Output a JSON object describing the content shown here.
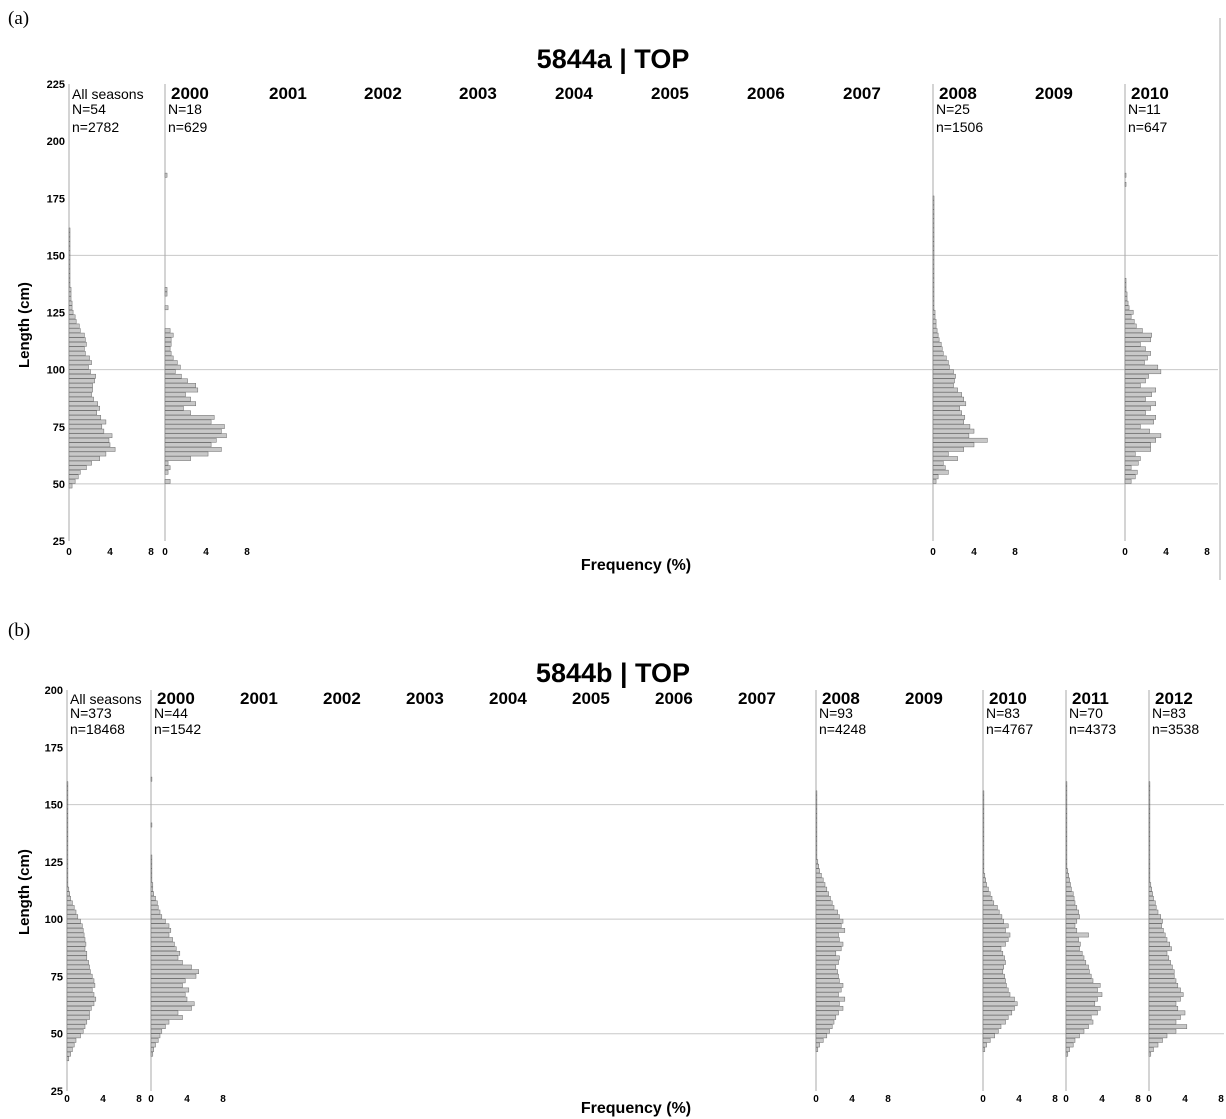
{
  "panels": [
    {
      "label": "(a)",
      "title": "5844a | TOP",
      "xlabel": "Frequency (%)",
      "ylabel": "Length (cm)"
    },
    {
      "label": "(b)",
      "title": "5844b | TOP",
      "xlabel": "Frequency (%)",
      "ylabel": "Length (cm)"
    }
  ],
  "colors": {
    "bar_fill": "#c8c8c8",
    "bar_stroke": "#6a6a6a",
    "grid": "#c8c8c8",
    "axis": "#aaaaaa"
  },
  "chart_data": [
    {
      "type": "bar",
      "orientation": "horizontal",
      "title": "5844a | TOP",
      "xlabel": "Frequency (%)",
      "ylabel": "Length (cm)",
      "ylim": [
        25,
        225
      ],
      "yticks": [
        25,
        50,
        75,
        100,
        125,
        150,
        175,
        200,
        225
      ],
      "xlim": [
        0,
        8
      ],
      "xticks": [
        0,
        4,
        8
      ],
      "bin_width_cm": 2,
      "grid_lines": [
        50,
        100,
        150
      ],
      "series": [
        {
          "name": "All seasons",
          "N": "N=54",
          "n": "n=2782",
          "has_axis": true,
          "start": 48,
          "values": [
            0.3,
            0.6,
            0.9,
            1.1,
            1.7,
            2.2,
            3.0,
            3.6,
            4.5,
            4.0,
            3.9,
            4.2,
            3.4,
            3.2,
            3.6,
            3.1,
            2.7,
            3.0,
            2.8,
            2.4,
            2.2,
            2.3,
            2.3,
            2.5,
            2.6,
            2.1,
            1.9,
            2.2,
            2.0,
            1.6,
            1.5,
            1.7,
            1.6,
            1.5,
            1.1,
            1.0,
            0.7,
            0.6,
            0.4,
            0.3,
            0.3,
            0.2,
            0.2,
            0.2,
            0.1,
            0.1,
            0.1,
            0.1,
            0.1,
            0.1,
            0.1,
            0.1,
            0.1,
            0.1,
            0.1,
            0.1,
            0.1
          ]
        },
        {
          "name": "2000",
          "N": "N=18",
          "n": "n=629",
          "has_axis": true,
          "start": 50,
          "values": [
            0.5,
            0,
            0.3,
            0.5,
            0.3,
            2.5,
            4.2,
            5.5,
            4.5,
            5.0,
            6.0,
            5.5,
            5.8,
            4.5,
            4.8,
            2.5,
            1.8,
            3.0,
            2.5,
            2.0,
            3.2,
            3.0,
            2.2,
            1.6,
            1.0,
            1.5,
            1.2,
            0.8,
            0.6,
            0.5,
            0.6,
            0.6,
            0.8,
            0.5,
            0.0,
            0,
            0,
            0,
            0.3,
            0,
            0,
            0.2,
            0.2,
            0,
            0,
            0,
            0,
            0,
            0,
            0,
            0,
            0,
            0,
            0,
            0,
            0,
            0,
            0,
            0,
            0,
            0,
            0,
            0,
            0,
            0,
            0,
            0,
            0.2
          ]
        },
        {
          "name": "2001",
          "has_axis": false
        },
        {
          "name": "2002",
          "has_axis": false
        },
        {
          "name": "2003",
          "has_axis": false
        },
        {
          "name": "2004",
          "has_axis": false
        },
        {
          "name": "2005",
          "has_axis": false
        },
        {
          "name": "2006",
          "has_axis": false
        },
        {
          "name": "2007",
          "has_axis": false
        },
        {
          "name": "2008",
          "N": "N=25",
          "n": "n=1506",
          "has_axis": true,
          "start": 50,
          "values": [
            0.3,
            0.5,
            1.5,
            1.2,
            1.0,
            2.4,
            1.5,
            3.0,
            4.0,
            5.3,
            3.5,
            4.0,
            3.6,
            3.0,
            3.1,
            2.8,
            2.6,
            3.2,
            3.0,
            2.8,
            2.4,
            2.0,
            2.1,
            2.2,
            2.0,
            1.6,
            1.5,
            1.3,
            1.0,
            0.9,
            0.8,
            0.6,
            0.5,
            0.4,
            0.3,
            0.3,
            0.2,
            0.2,
            0.1,
            0.1,
            0.1,
            0.1,
            0.1,
            0.1,
            0.1,
            0.1,
            0.1,
            0.1,
            0.1,
            0.1,
            0.1,
            0.1,
            0.1,
            0.1,
            0.1,
            0.1,
            0.1,
            0.1,
            0.1,
            0.1,
            0.1,
            0.1,
            0.1
          ]
        },
        {
          "name": "2009",
          "has_axis": false
        },
        {
          "name": "2010",
          "N": "N=11",
          "n": "n=647",
          "has_axis": true,
          "start": 50,
          "values": [
            0.6,
            1.0,
            1.2,
            0.6,
            1.3,
            1.5,
            1.0,
            2.5,
            2.5,
            3.0,
            3.5,
            2.4,
            1.5,
            2.8,
            3.0,
            2.0,
            2.5,
            3.0,
            2.0,
            2.6,
            3.0,
            1.5,
            2.0,
            2.3,
            3.5,
            3.2,
            1.9,
            2.2,
            2.5,
            2.0,
            1.5,
            2.5,
            2.6,
            1.7,
            1.1,
            0.9,
            0.6,
            0.8,
            0.4,
            0.3,
            0.2,
            0.2,
            0.1,
            0.1,
            0.1,
            0,
            0,
            0,
            0,
            0,
            0,
            0,
            0,
            0,
            0,
            0,
            0,
            0,
            0,
            0,
            0,
            0,
            0,
            0,
            0,
            0.1,
            0,
            0.1
          ]
        }
      ]
    },
    {
      "type": "bar",
      "orientation": "horizontal",
      "title": "5844b | TOP",
      "xlabel": "Frequency (%)",
      "ylabel": "Length (cm)",
      "ylim": [
        25,
        200
      ],
      "yticks": [
        25,
        50,
        75,
        100,
        125,
        150,
        175,
        200
      ],
      "xlim": [
        0,
        8
      ],
      "xticks": [
        0,
        4,
        8
      ],
      "bin_width_cm": 2,
      "grid_lines": [
        50,
        100,
        150
      ],
      "series": [
        {
          "name": "All seasons",
          "N": "N=373",
          "n": "n=18468",
          "has_axis": true,
          "start": 38,
          "values": [
            0.2,
            0.4,
            0.6,
            0.8,
            1.0,
            1.5,
            1.8,
            2.0,
            2.2,
            2.5,
            2.5,
            2.7,
            3.0,
            3.2,
            3.0,
            2.8,
            3.1,
            3.0,
            2.8,
            2.6,
            2.5,
            2.4,
            2.2,
            2.2,
            2.0,
            2.1,
            2.0,
            1.9,
            1.8,
            1.7,
            1.5,
            1.2,
            1.0,
            0.8,
            0.6,
            0.4,
            0.3,
            0.2,
            0.1,
            0.1,
            0.1,
            0.1,
            0.1,
            0.1,
            0.1,
            0.1,
            0.1,
            0.1,
            0.1,
            0.1,
            0.1,
            0.1,
            0.1,
            0.1,
            0.1,
            0.1,
            0.1,
            0.1,
            0.1,
            0.1,
            0.1
          ]
        },
        {
          "name": "2000",
          "N": "N=44",
          "n": "n=1542",
          "has_axis": true,
          "start": 40,
          "values": [
            0.2,
            0.3,
            0.5,
            0.8,
            1.0,
            1.2,
            1.6,
            2.0,
            3.5,
            3.0,
            4.5,
            4.8,
            4.0,
            3.8,
            4.2,
            3.5,
            3.8,
            5.0,
            5.3,
            4.5,
            3.5,
            3.0,
            3.2,
            2.8,
            2.6,
            2.4,
            2.0,
            2.2,
            2.0,
            1.6,
            1.2,
            1.0,
            0.8,
            0.7,
            0.5,
            0.3,
            0.2,
            0.2,
            0.1,
            0.1,
            0.1,
            0.1,
            0.1,
            0.1,
            0,
            0,
            0,
            0,
            0,
            0,
            0.1,
            0,
            0,
            0,
            0,
            0,
            0,
            0,
            0,
            0,
            0.1
          ]
        },
        {
          "name": "2001",
          "has_axis": false
        },
        {
          "name": "2002",
          "has_axis": false
        },
        {
          "name": "2003",
          "has_axis": false
        },
        {
          "name": "2004",
          "has_axis": false
        },
        {
          "name": "2005",
          "has_axis": false
        },
        {
          "name": "2006",
          "has_axis": false
        },
        {
          "name": "2007",
          "has_axis": false
        },
        {
          "name": "2008",
          "N": "N=93",
          "n": "n=4248",
          "has_axis": true,
          "start": 42,
          "values": [
            0.2,
            0.4,
            0.8,
            1.2,
            1.5,
            1.8,
            2.0,
            2.2,
            2.5,
            3.0,
            2.6,
            3.2,
            2.5,
            2.8,
            3.0,
            2.6,
            2.5,
            2.4,
            2.2,
            2.5,
            2.6,
            2.2,
            2.8,
            3.0,
            2.6,
            2.5,
            3.2,
            2.8,
            3.0,
            2.6,
            2.4,
            2.0,
            1.8,
            1.6,
            1.4,
            1.2,
            1.0,
            0.8,
            0.6,
            0.4,
            0.3,
            0.2,
            0.1,
            0.1,
            0.1,
            0.1,
            0.1,
            0.1,
            0.1,
            0.1,
            0.1,
            0.1,
            0.1,
            0.1,
            0.1,
            0.1,
            0.1
          ]
        },
        {
          "name": "2009",
          "has_axis": false
        },
        {
          "name": "2010",
          "N": "N=83",
          "n": "n=4767",
          "has_axis": true,
          "start": 42,
          "values": [
            0.2,
            0.4,
            0.8,
            1.3,
            1.7,
            2.0,
            2.5,
            2.8,
            3.2,
            3.5,
            3.8,
            3.5,
            3.0,
            2.8,
            2.6,
            2.5,
            2.4,
            2.2,
            2.3,
            2.5,
            2.4,
            2.2,
            2.0,
            2.5,
            2.8,
            3.0,
            2.5,
            2.8,
            2.3,
            2.1,
            1.8,
            1.6,
            1.2,
            1.0,
            0.8,
            0.6,
            0.4,
            0.3,
            0.2,
            0.1,
            0.1,
            0.1,
            0.1,
            0.1,
            0.1,
            0.1,
            0.1,
            0.1,
            0.1,
            0.1,
            0.1,
            0.1,
            0.1,
            0.1,
            0.1,
            0.1,
            0.1
          ]
        },
        {
          "name": "2011",
          "N": "N=70",
          "n": "n=4373",
          "has_axis": true,
          "start": 40,
          "values": [
            0.2,
            0.4,
            0.8,
            1.0,
            1.5,
            2.0,
            2.5,
            3.0,
            2.8,
            3.5,
            3.8,
            3.2,
            3.5,
            4.0,
            3.5,
            3.8,
            3.0,
            2.8,
            2.6,
            2.5,
            2.2,
            2.0,
            1.8,
            1.5,
            1.6,
            1.4,
            2.5,
            1.2,
            1.0,
            1.2,
            1.5,
            1.4,
            1.2,
            1.0,
            0.9,
            0.8,
            0.6,
            0.5,
            0.4,
            0.3,
            0.2,
            0.1,
            0.1,
            0.1,
            0.1,
            0.1,
            0.1,
            0.1,
            0.1,
            0.1,
            0.1,
            0.1,
            0.1,
            0.1,
            0.1,
            0.1,
            0.1,
            0.1,
            0.1,
            0.1
          ]
        },
        {
          "name": "2012",
          "N": "N=83",
          "n": "n=3538",
          "has_axis": true,
          "start": 40,
          "values": [
            0.2,
            0.5,
            1.0,
            1.5,
            2.0,
            3.0,
            4.2,
            3.0,
            3.5,
            4.0,
            3.2,
            3.0,
            3.5,
            3.8,
            3.5,
            3.2,
            3.0,
            2.8,
            2.8,
            2.6,
            2.4,
            2.2,
            2.0,
            2.5,
            2.3,
            2.0,
            1.8,
            1.6,
            1.4,
            1.5,
            1.3,
            1.0,
            0.8,
            0.7,
            0.5,
            0.4,
            0.3,
            0.2,
            0.1,
            0.1,
            0.1,
            0.1,
            0.1,
            0.1,
            0.1,
            0.1,
            0.1,
            0.1,
            0.1,
            0.1,
            0.1,
            0.1,
            0.1,
            0.1,
            0.1,
            0.1,
            0.1,
            0.1,
            0.1,
            0.1
          ]
        }
      ]
    }
  ]
}
